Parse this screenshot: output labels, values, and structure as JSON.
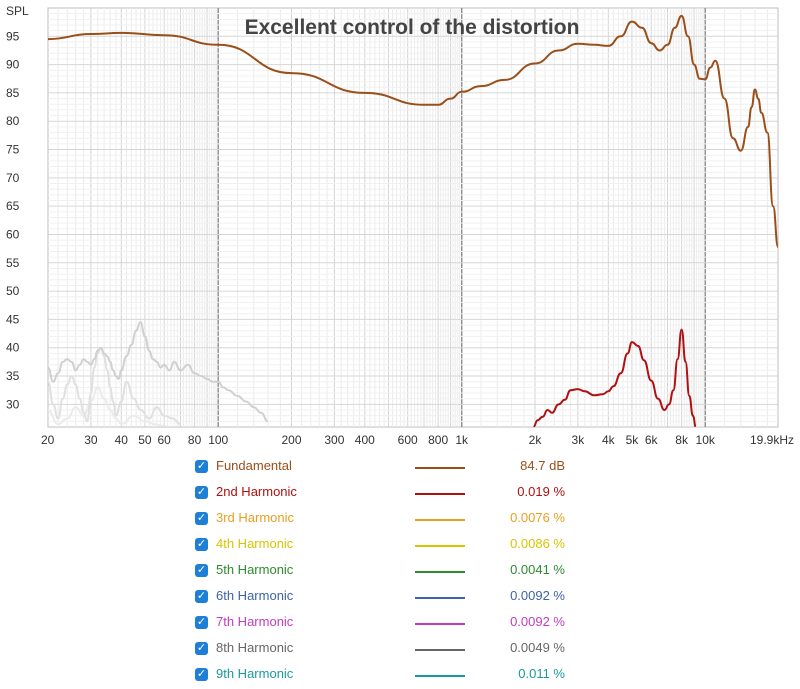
{
  "chart_data": {
    "type": "line",
    "title": "Excellent control of the distortion",
    "ylabel": "SPL",
    "xlabel": "",
    "x_scale": "log",
    "xlim": [
      20,
      19900
    ],
    "ylim": [
      26,
      100
    ],
    "y_ticks": [
      30,
      35,
      40,
      45,
      50,
      55,
      60,
      65,
      70,
      75,
      80,
      85,
      90,
      95
    ],
    "x_ticks": [
      {
        "v": 20,
        "label": "20"
      },
      {
        "v": 30,
        "label": "30"
      },
      {
        "v": 40,
        "label": "40"
      },
      {
        "v": 50,
        "label": "50"
      },
      {
        "v": 60,
        "label": "60"
      },
      {
        "v": 80,
        "label": "80"
      },
      {
        "v": 100,
        "label": "100"
      },
      {
        "v": 200,
        "label": "200"
      },
      {
        "v": 300,
        "label": "300"
      },
      {
        "v": 400,
        "label": "400"
      },
      {
        "v": 600,
        "label": "600"
      },
      {
        "v": 800,
        "label": "800"
      },
      {
        "v": 1000,
        "label": "1k"
      },
      {
        "v": 2000,
        "label": "2k"
      },
      {
        "v": 3000,
        "label": "3k"
      },
      {
        "v": 4000,
        "label": "4k"
      },
      {
        "v": 5000,
        "label": "5k"
      },
      {
        "v": 6000,
        "label": "6k"
      },
      {
        "v": 8000,
        "label": "8k"
      },
      {
        "v": 10000,
        "label": "10k"
      },
      {
        "v": 19900,
        "label": "19.9kHz"
      }
    ],
    "grid": true,
    "series": [
      {
        "name": "Fundamental",
        "color": "#9a4f1a",
        "x": [
          20,
          30,
          40,
          60,
          100,
          200,
          400,
          700,
          800,
          900,
          1000,
          1200,
          1500,
          2000,
          2500,
          3000,
          3500,
          4000,
          4500,
          5000,
          5500,
          6000,
          6500,
          7000,
          7500,
          8000,
          8500,
          9000,
          9500,
          10000,
          10500,
          11000,
          12000,
          13000,
          14000,
          15000,
          15500,
          16000,
          16500,
          17000,
          18000,
          19000,
          19900
        ],
        "values": [
          94.5,
          95.4,
          95.6,
          95.2,
          93.5,
          88.5,
          85.0,
          82.9,
          82.9,
          84.0,
          85.2,
          86.2,
          87.3,
          90.2,
          92.5,
          93.7,
          93.5,
          93.3,
          95.0,
          97.6,
          96.5,
          93.8,
          92.5,
          93.5,
          96.5,
          98.6,
          95.0,
          90.0,
          87.5,
          87.4,
          89.5,
          90.7,
          84.0,
          77.0,
          74.8,
          79.0,
          82.5,
          85.6,
          84.0,
          81.5,
          78.0,
          65.0,
          57.8
        ]
      },
      {
        "name": "2nd Harmonic",
        "color": "#b01010",
        "x": [
          1970,
          2050,
          2150,
          2250,
          2350,
          2500,
          2650,
          2800,
          3000,
          3200,
          3500,
          3800,
          4000,
          4200,
          4500,
          4800,
          5000,
          5300,
          5600,
          6000,
          6400,
          6800,
          7100,
          7400,
          7700,
          8000,
          8300,
          8600,
          8900,
          9150
        ],
        "values": [
          26.0,
          27.2,
          27.8,
          29.0,
          28.5,
          30.0,
          30.8,
          32.5,
          32.7,
          32.3,
          31.6,
          31.8,
          32.3,
          33.2,
          35.5,
          39.0,
          41.0,
          40.3,
          37.8,
          34.2,
          31.0,
          29.0,
          30.0,
          32.5,
          38.0,
          43.2,
          37.5,
          31.5,
          28.0,
          26.0
        ]
      },
      {
        "name": "3rd Harmonic",
        "color": "#d0d0d0",
        "x": [
          20,
          21,
          22,
          23,
          24,
          25,
          26,
          27,
          28,
          29,
          30,
          31,
          32,
          33,
          34,
          35,
          36,
          37,
          38,
          39,
          40,
          42,
          44,
          46,
          48,
          50,
          52,
          54,
          56,
          58,
          60,
          63,
          66,
          70,
          75,
          80,
          85,
          90,
          95,
          100,
          105,
          110,
          120,
          130,
          140,
          150,
          160
        ],
        "values": [
          36.5,
          34.0,
          35.5,
          37.5,
          38.0,
          37.5,
          36.0,
          37.0,
          38.0,
          37.5,
          37.0,
          38.0,
          39.5,
          40.0,
          39.0,
          38.5,
          37.5,
          36.0,
          35.0,
          34.5,
          36.0,
          38.5,
          40.5,
          43.0,
          44.5,
          42.0,
          39.5,
          38.0,
          37.5,
          36.5,
          37.0,
          36.0,
          37.5,
          36.0,
          37.0,
          35.5,
          35.0,
          34.5,
          34.0,
          34.0,
          33.0,
          32.5,
          31.5,
          30.5,
          29.5,
          28.5,
          27.0
        ]
      },
      {
        "name": "4th Harmonic",
        "color": "#e0e0e0",
        "x": [
          20,
          21,
          22,
          23,
          24,
          25,
          26,
          27,
          28,
          29,
          30,
          31,
          32,
          33,
          34,
          35,
          36,
          37,
          38,
          40,
          42,
          45,
          48,
          52,
          56,
          60,
          65,
          70
        ],
        "values": [
          34.0,
          30.0,
          27.5,
          31.0,
          33.5,
          35.0,
          33.5,
          31.0,
          28.5,
          27.0,
          32.0,
          36.5,
          39.0,
          40.0,
          38.5,
          36.0,
          33.0,
          30.5,
          28.0,
          30.5,
          34.0,
          31.0,
          29.0,
          27.5,
          29.5,
          28.0,
          27.5,
          26.5
        ]
      },
      {
        "name": "5th Harmonic",
        "color": "#ebebeb",
        "x": [
          20,
          22,
          24,
          26,
          28,
          30,
          32,
          34,
          36,
          38,
          40,
          45,
          50,
          55,
          60
        ],
        "values": [
          29.0,
          26.5,
          27.5,
          29.5,
          28.0,
          30.5,
          33.0,
          31.0,
          29.0,
          27.5,
          26.5,
          28.0,
          27.0,
          26.5,
          26.2
        ]
      }
    ]
  },
  "legend": [
    {
      "label": "Fundamental",
      "value": "84.7 dB",
      "color": "#9a4f1a",
      "checked": true
    },
    {
      "label": "2nd Harmonic",
      "value": "0.019 %",
      "color": "#b01010",
      "checked": true
    },
    {
      "label": "3rd Harmonic",
      "value": "0.0076 %",
      "color": "#e8a020",
      "checked": true
    },
    {
      "label": "4th Harmonic",
      "value": "0.0086 %",
      "color": "#d9c400",
      "checked": true
    },
    {
      "label": "5th Harmonic",
      "value": "0.0041 %",
      "color": "#2e8b2e",
      "checked": true
    },
    {
      "label": "6th Harmonic",
      "value": "0.0092 %",
      "color": "#3e62a8",
      "checked": true
    },
    {
      "label": "7th Harmonic",
      "value": "0.0092 %",
      "color": "#c03cc0",
      "checked": true
    },
    {
      "label": "8th Harmonic",
      "value": "0.0049 %",
      "color": "#666666",
      "checked": true
    },
    {
      "label": "9th Harmonic",
      "value": "0.011 %",
      "color": "#1a9a9a",
      "checked": true
    }
  ]
}
